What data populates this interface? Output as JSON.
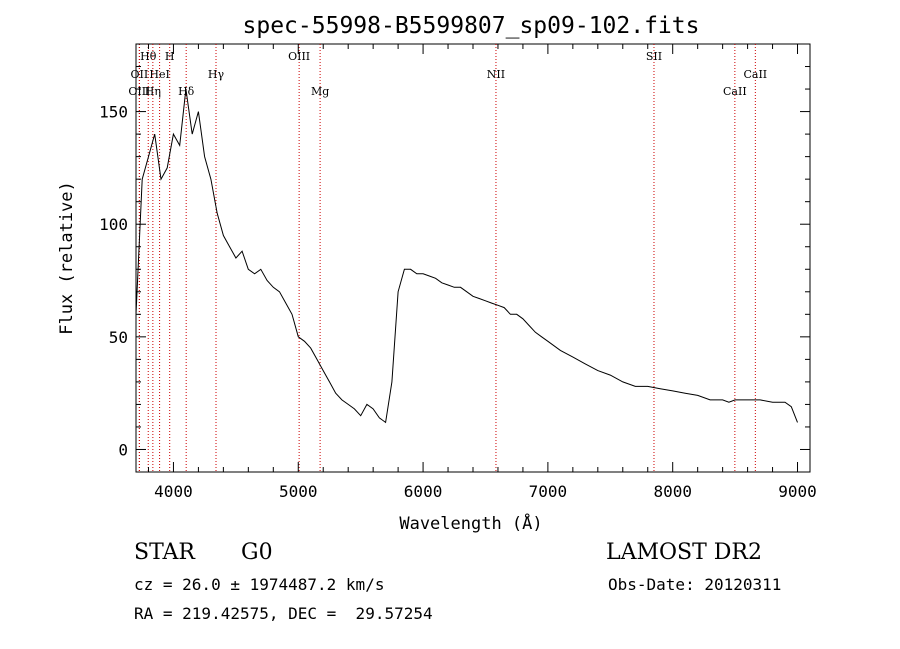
{
  "chart_data": {
    "type": "line",
    "title": "spec-55998-B5599807_sp09-102.fits",
    "xlabel": "Wavelength (Å)",
    "ylabel": "Flux (relative)",
    "xlim": [
      3700,
      9100
    ],
    "ylim": [
      -10,
      180
    ],
    "x_ticks": [
      4000,
      5000,
      6000,
      7000,
      8000,
      9000
    ],
    "y_ticks": [
      0,
      50,
      100,
      150
    ],
    "grid": false,
    "line_color": "#000000",
    "marker_color": "#cc0000",
    "series": [
      {
        "x": [
          3700,
          3750,
          3800,
          3850,
          3900,
          3950,
          4000,
          4050,
          4100,
          4150,
          4200,
          4250,
          4300,
          4350,
          4400,
          4450,
          4500,
          4550,
          4600,
          4650,
          4700,
          4750,
          4800,
          4850,
          4900,
          4950,
          5000,
          5050,
          5100,
          5150,
          5200,
          5250,
          5300,
          5350,
          5400,
          5450,
          5500,
          5550,
          5600,
          5650,
          5700,
          5750,
          5800,
          5850,
          5900,
          5950,
          6000,
          6050,
          6100,
          6150,
          6200,
          6250,
          6300,
          6350,
          6400,
          6450,
          6500,
          6550,
          6600,
          6650,
          6700,
          6750,
          6800,
          6850,
          6900,
          6950,
          7000,
          7100,
          7200,
          7300,
          7400,
          7500,
          7600,
          7700,
          7800,
          7900,
          8000,
          8100,
          8200,
          8300,
          8400,
          8450,
          8500,
          8600,
          8700,
          8800,
          8900,
          8950,
          9000
        ],
        "y": [
          60,
          120,
          130,
          140,
          120,
          125,
          140,
          135,
          160,
          140,
          150,
          130,
          120,
          105,
          95,
          90,
          85,
          88,
          80,
          78,
          80,
          75,
          72,
          70,
          65,
          60,
          50,
          48,
          45,
          40,
          35,
          30,
          25,
          22,
          20,
          18,
          15,
          20,
          18,
          14,
          12,
          30,
          70,
          80,
          80,
          78,
          78,
          77,
          76,
          74,
          73,
          72,
          72,
          70,
          68,
          67,
          66,
          65,
          64,
          63,
          60,
          60,
          58,
          55,
          52,
          50,
          48,
          44,
          41,
          38,
          35,
          33,
          30,
          28,
          28,
          27,
          26,
          25,
          24,
          22,
          22,
          21,
          22,
          22,
          22,
          21,
          21,
          19,
          12
        ]
      }
    ],
    "line_markers": [
      {
        "label": "Hθ",
        "x": 3798,
        "row": 0
      },
      {
        "label": "H",
        "x": 3970,
        "row": 0
      },
      {
        "label": "OII",
        "x": 3727,
        "row": 1
      },
      {
        "label": "HeI",
        "x": 3889,
        "row": 1
      },
      {
        "label": "OIII",
        "x": 3727,
        "row": 2
      },
      {
        "label": "Hη",
        "x": 3835,
        "row": 2
      },
      {
        "label": "Hδ",
        "x": 4102,
        "row": 2
      },
      {
        "label": "Hγ",
        "x": 4341,
        "row": 1
      },
      {
        "label": "OIII",
        "x": 5007,
        "row": 0
      },
      {
        "label": "Mg",
        "x": 5175,
        "row": 2
      },
      {
        "label": "NII",
        "x": 6584,
        "row": 1
      },
      {
        "label": "SII",
        "x": 7850,
        "row": 0
      },
      {
        "label": "CaII",
        "x": 8498,
        "row": 2
      },
      {
        "label": "CaII",
        "x": 8662,
        "row": 1
      }
    ]
  },
  "info": {
    "object_class": "STAR",
    "subclass": "G0",
    "survey": "LAMOST DR2",
    "cz": "cz = 26.0 ± 1974487.2 km/s",
    "obs_date": "Obs-Date: 20120311",
    "coords": "RA = 219.42575, DEC =  29.57254"
  }
}
